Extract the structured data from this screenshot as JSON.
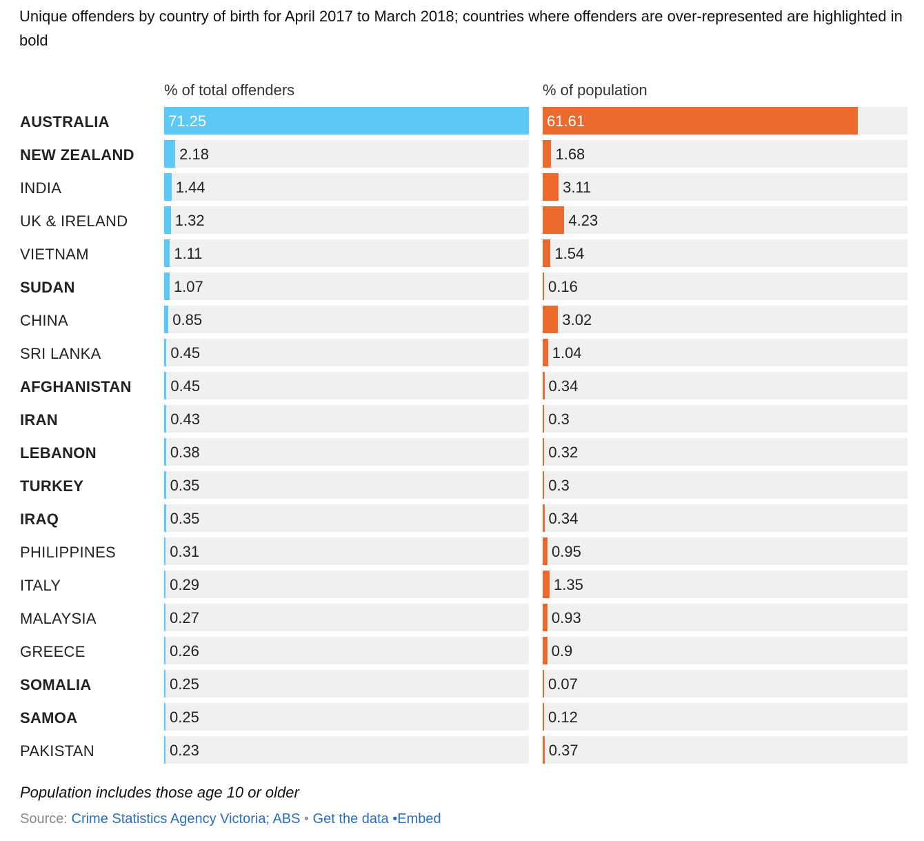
{
  "title": "Unique offenders by country of birth for April 2017 to March 2018; countries where offenders are over-represented are highlighted in bold",
  "chart_data": {
    "type": "bar",
    "orientation": "horizontal",
    "categories": [
      "AUSTRALIA",
      "NEW ZEALAND",
      "INDIA",
      "UK & IRELAND",
      "VIETNAM",
      "SUDAN",
      "CHINA",
      "SRI LANKA",
      "AFGHANISTAN",
      "IRAN",
      "LEBANON",
      "TURKEY",
      "IRAQ",
      "PHILIPPINES",
      "ITALY",
      "MALAYSIA",
      "GREECE",
      "SOMALIA",
      "SAMOA",
      "PAKISTAN"
    ],
    "bold_categories": [
      "AUSTRALIA",
      "NEW ZEALAND",
      "SUDAN",
      "AFGHANISTAN",
      "IRAN",
      "LEBANON",
      "TURKEY",
      "IRAQ",
      "SOMALIA",
      "SAMOA"
    ],
    "series": [
      {
        "name": "% of total offenders",
        "color": "#5bc8f5",
        "values": [
          71.25,
          2.18,
          1.44,
          1.32,
          1.11,
          1.07,
          0.85,
          0.45,
          0.45,
          0.43,
          0.38,
          0.35,
          0.35,
          0.31,
          0.29,
          0.27,
          0.26,
          0.25,
          0.25,
          0.23
        ]
      },
      {
        "name": "% of population",
        "color": "#ec6a2e",
        "values": [
          61.61,
          1.68,
          3.11,
          4.23,
          1.54,
          0.16,
          3.02,
          1.04,
          0.34,
          0.3,
          0.32,
          0.3,
          0.34,
          0.95,
          1.35,
          0.93,
          0.9,
          0.07,
          0.12,
          0.37
        ]
      }
    ],
    "xlim": [
      0,
      71.25
    ],
    "track_color": "#f0f0f0",
    "grid": false,
    "legend": "none"
  },
  "footer": {
    "note": "Population includes those age 10 or older",
    "source_label": "Source:",
    "source_link": "Crime Statistics Agency Victoria; ABS",
    "separator": "•",
    "get_data": "Get the data",
    "embed": "•Embed"
  }
}
